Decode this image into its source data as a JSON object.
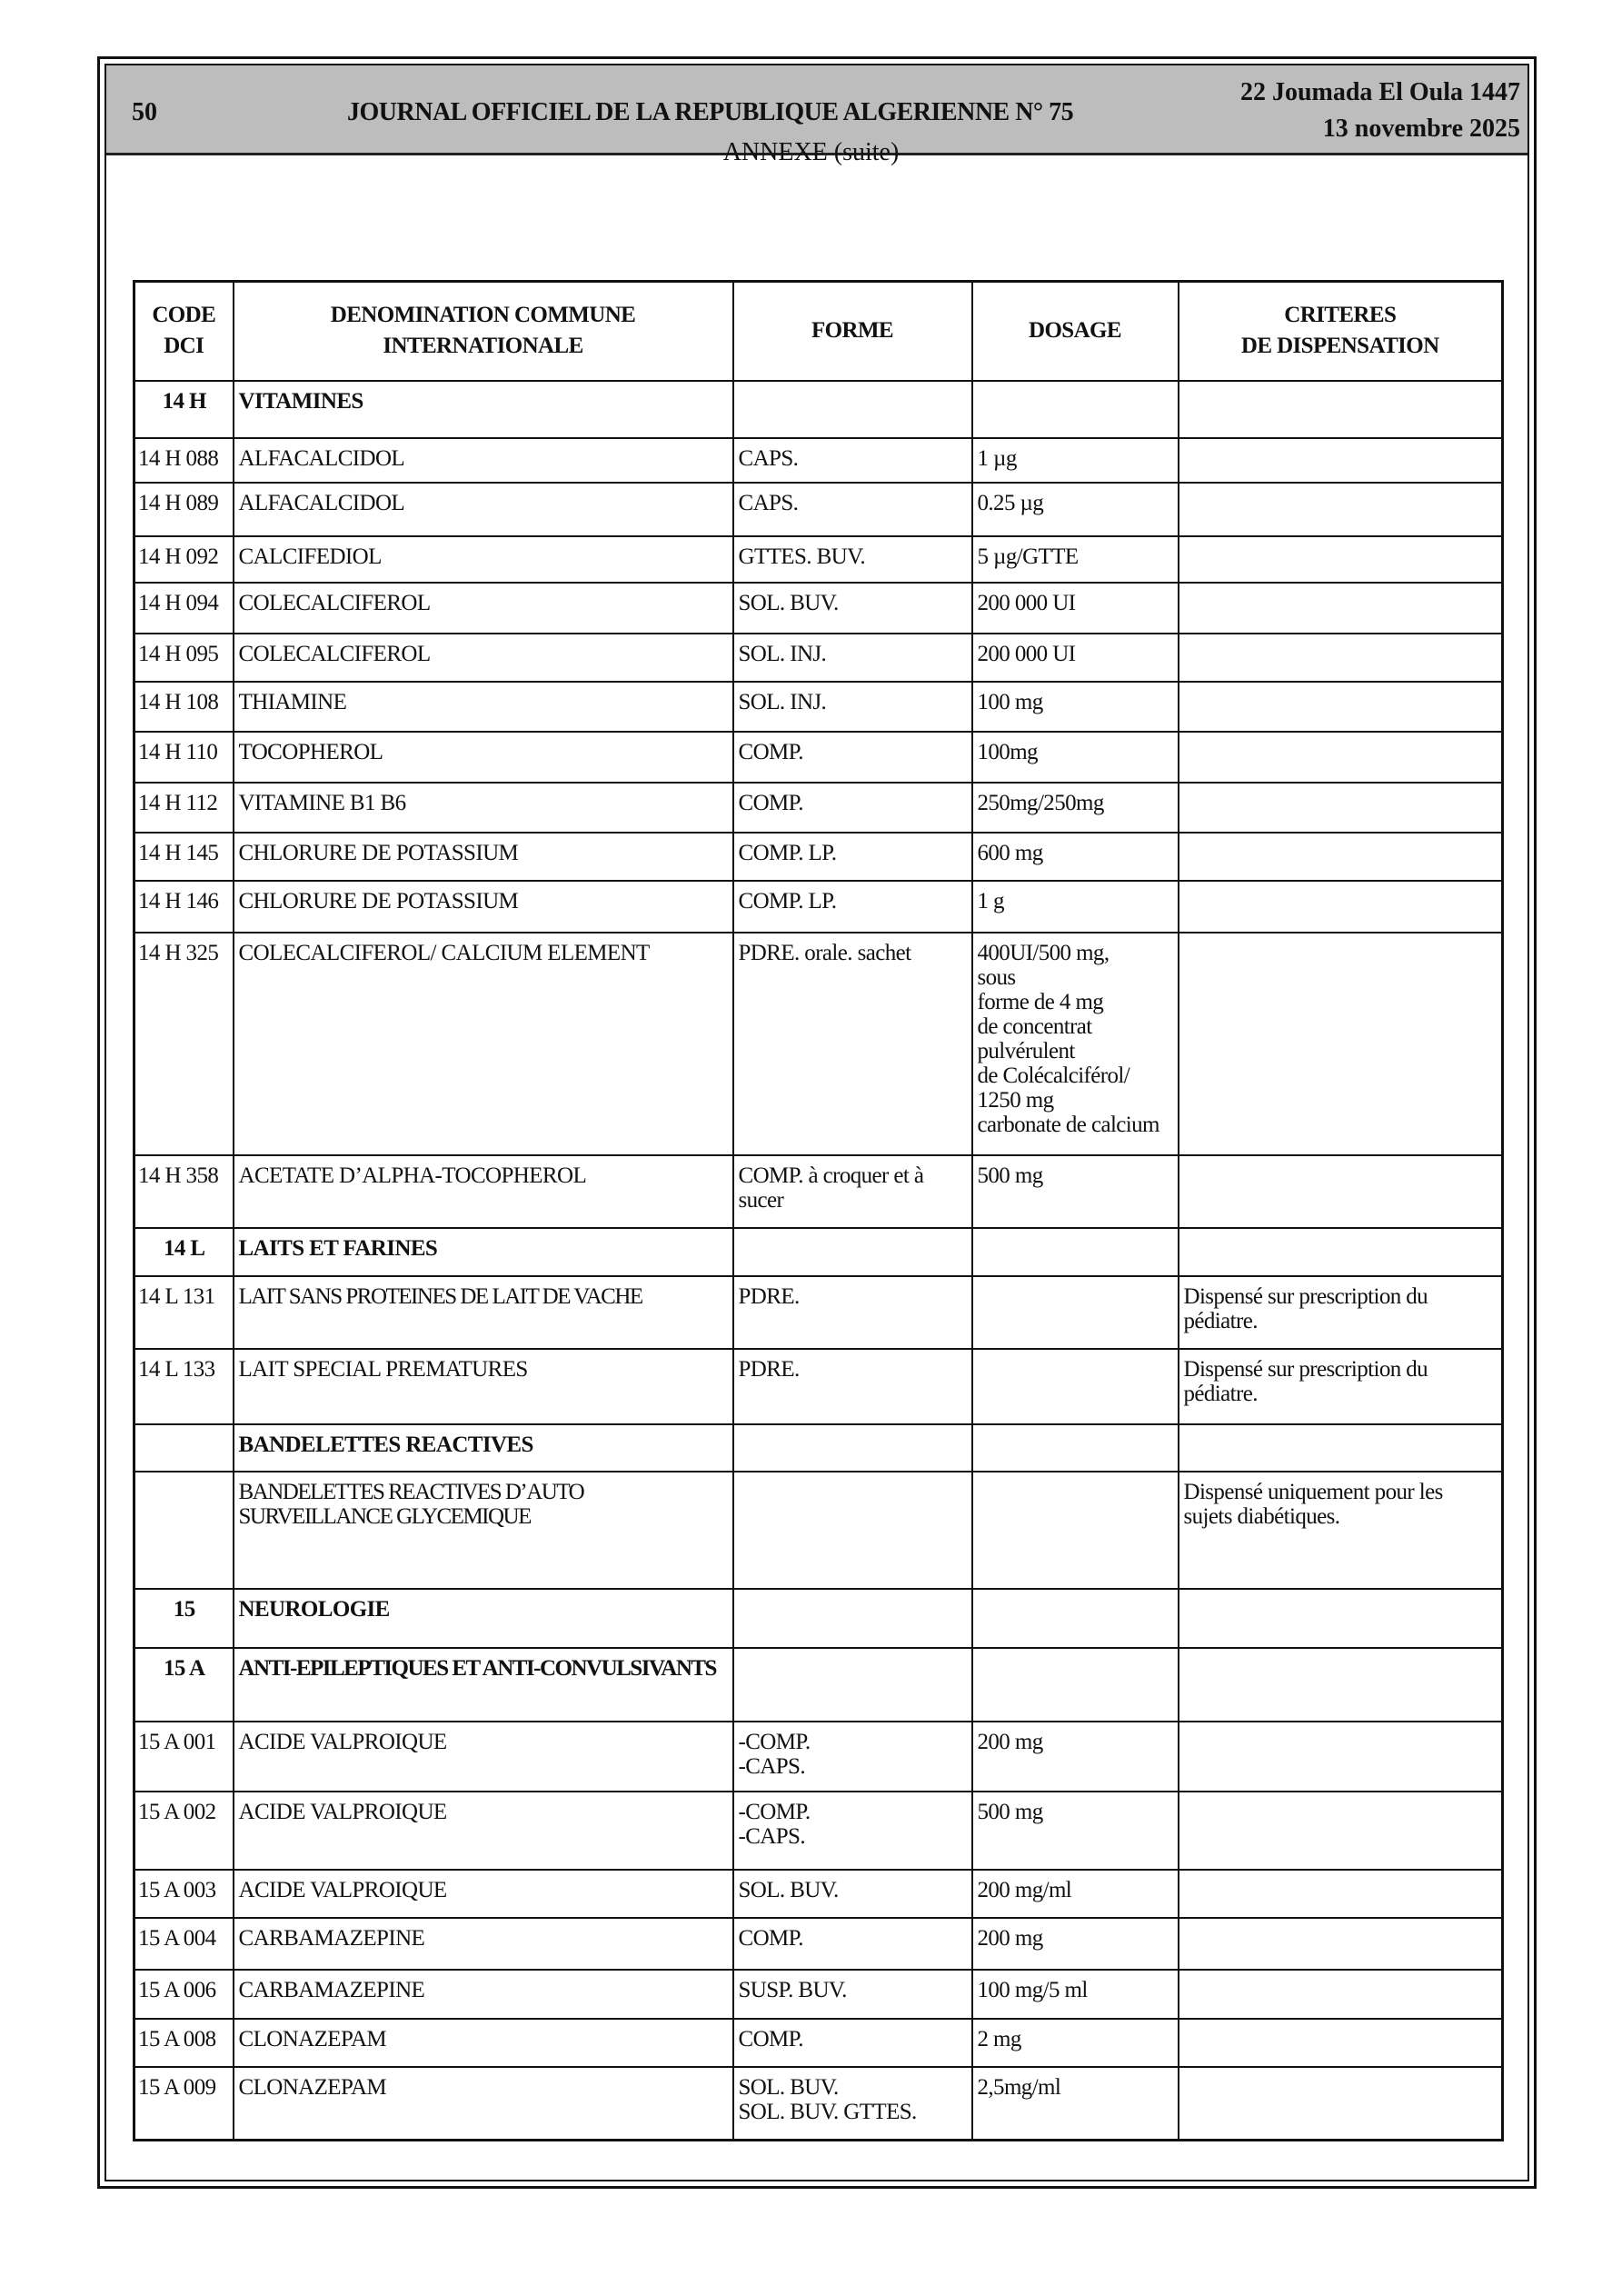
{
  "header": {
    "page_number": "50",
    "journal_title": "JOURNAL OFFICIEL DE LA REPUBLIQUE ALGERIENNE N° 75",
    "date_hijri": "22 Joumada El Oula 1447",
    "date_gregorian": "13 novembre 2025"
  },
  "annexe_title": "ANNEXE (suite)",
  "table": {
    "columns": [
      "CODE\nDCI",
      "DENOMINATION COMMUNE\nINTERNATIONALE",
      "FORME",
      "DOSAGE",
      "CRITERES\nDE DISPENSATION"
    ],
    "rows": [
      {
        "type": "section",
        "code": "14 H",
        "name": "VITAMINES",
        "forme": "",
        "dosage": "",
        "criteres": ""
      },
      {
        "type": "item",
        "code": "14 H 088",
        "name": "ALFACALCIDOL",
        "forme": "CAPS.",
        "dosage": "1 µg",
        "criteres": ""
      },
      {
        "type": "item",
        "code": "14 H 089",
        "name": "ALFACALCIDOL",
        "forme": "CAPS.",
        "dosage": "0.25 µg",
        "criteres": ""
      },
      {
        "type": "item",
        "code": "14 H 092",
        "name": "CALCIFEDIOL",
        "forme": "GTTES. BUV.",
        "dosage": "5 µg/GTTE",
        "criteres": ""
      },
      {
        "type": "item",
        "code": "14 H 094",
        "name": "COLECALCIFEROL",
        "forme": "SOL. BUV.",
        "dosage": "200 000 UI",
        "criteres": ""
      },
      {
        "type": "item",
        "code": "14 H 095",
        "name": "COLECALCIFEROL",
        "forme": "SOL. INJ.",
        "dosage": "200 000 UI",
        "criteres": ""
      },
      {
        "type": "item",
        "code": "14 H 108",
        "name": "THIAMINE",
        "forme": "SOL. INJ.",
        "dosage": "100 mg",
        "criteres": ""
      },
      {
        "type": "item",
        "code": "14 H 110",
        "name": "TOCOPHEROL",
        "forme": "COMP.",
        "dosage": "100mg",
        "criteres": ""
      },
      {
        "type": "item",
        "code": "14 H 112",
        "name": "VITAMINE B1 B6",
        "forme": "COMP.",
        "dosage": "250mg/250mg",
        "criteres": ""
      },
      {
        "type": "item",
        "code": "14 H 145",
        "name": "CHLORURE DE POTASSIUM",
        "forme": "COMP. LP.",
        "dosage": "600 mg",
        "criteres": ""
      },
      {
        "type": "item",
        "code": "14 H 146",
        "name": "CHLORURE DE POTASSIUM",
        "forme": "COMP. LP.",
        "dosage": "1 g",
        "criteres": ""
      },
      {
        "type": "item",
        "code": "14 H 325",
        "name": "COLECALCIFEROL/ CALCIUM ELEMENT",
        "forme": "PDRE. orale. sachet",
        "dosage": "400UI/500 mg,\n sous\n forme de 4 mg\n de concentrat\n pulvérulent\n de Colécalciférol/\n 1250 mg\ncarbonate de calcium",
        "criteres": ""
      },
      {
        "type": "item",
        "code": "14 H 358",
        "name": "ACETATE D’ALPHA-TOCOPHEROL",
        "forme": "COMP. à croquer et à\n sucer",
        "dosage": " 500 mg",
        "criteres": ""
      },
      {
        "type": "section",
        "code": "14 L",
        "name": "LAITS ET FARINES",
        "forme": "",
        "dosage": "",
        "criteres": ""
      },
      {
        "type": "item",
        "code": "14 L 131",
        "name": "LAIT SANS PROTEINES DE LAIT DE VACHE",
        "forme": "PDRE.",
        "dosage": "",
        "criteres": "Dispensé sur prescription du\n pédiatre."
      },
      {
        "type": "item",
        "code": "14 L 133",
        "name": "LAIT SPECIAL PREMATURES",
        "forme": "PDRE.",
        "dosage": "",
        "criteres": "Dispensé sur prescription du\n pédiatre."
      },
      {
        "type": "section",
        "code": "",
        "name": "BANDELETTES REACTIVES",
        "forme": "",
        "dosage": "",
        "criteres": ""
      },
      {
        "type": "item",
        "code": "",
        "name": "BANDELETTES REACTIVES D’AUTO\n SURVEILLANCE GLYCEMIQUE",
        "forme": "",
        "dosage": "",
        "criteres": "Dispensé uniquement pour les\n sujets diabétiques."
      },
      {
        "type": "section",
        "code": "15",
        "name": "NEUROLOGIE",
        "forme": "",
        "dosage": "",
        "criteres": ""
      },
      {
        "type": "section",
        "code": "15 A",
        "name": "ANTI-EPILEPTIQUES ET ANTI-CONVULSIVANTS",
        "forme": "",
        "dosage": "",
        "criteres": ""
      },
      {
        "type": "item",
        "code": "15 A 001",
        "name": "ACIDE VALPROIQUE",
        "forme": "-COMP.\n-CAPS.",
        "dosage": "200 mg",
        "criteres": ""
      },
      {
        "type": "item",
        "code": "15 A 002",
        "name": "ACIDE VALPROIQUE",
        "forme": "-COMP.\n-CAPS.",
        "dosage": "500 mg",
        "criteres": ""
      },
      {
        "type": "item",
        "code": "15 A 003",
        "name": "ACIDE VALPROIQUE",
        "forme": "SOL. BUV.",
        "dosage": "200 mg/ml",
        "criteres": ""
      },
      {
        "type": "item",
        "code": "15 A 004",
        "name": "CARBAMAZEPINE",
        "forme": "COMP.",
        "dosage": "200 mg",
        "criteres": ""
      },
      {
        "type": "item",
        "code": "15 A 006",
        "name": "CARBAMAZEPINE",
        "forme": "SUSP. BUV.",
        "dosage": "100 mg/5 ml",
        "criteres": ""
      },
      {
        "type": "item",
        "code": "15 A 008",
        "name": "CLONAZEPAM",
        "forme": "COMP.",
        "dosage": "2 mg",
        "criteres": ""
      },
      {
        "type": "item",
        "code": "15 A 009",
        "name": "CLONAZEPAM",
        "forme": "SOL. BUV.\nSOL. BUV. GTTES.",
        "dosage": "2,5mg/ml",
        "criteres": ""
      }
    ]
  }
}
